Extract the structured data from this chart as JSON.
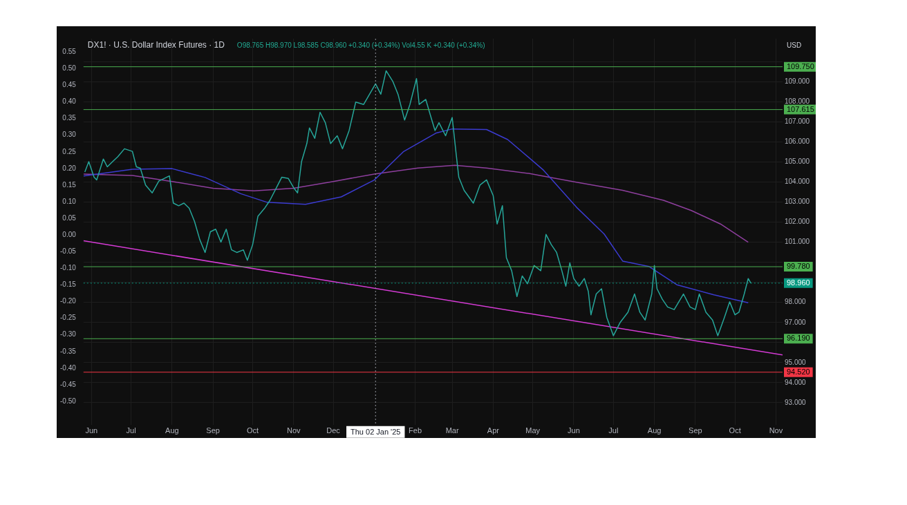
{
  "chart_data": {
    "type": "line",
    "title": "DX1! · U.S. Dollar Index Futures · 1D",
    "annotations": [
      "O98.765 H98.970 L98.585 C98.960 +0.340 (+0.34%) Vol4.55 K +0.340 (+0.34%)",
      "USD"
    ],
    "series": [
      {
        "color": "#26a69a",
        "x": [
          "2024-05-27",
          "2024-05-30",
          "2024-06-03",
          "2024-06-05",
          "2024-06-10",
          "2024-06-13",
          "2024-06-17",
          "2024-06-21",
          "2024-06-26",
          "2024-07-02",
          "2024-07-05",
          "2024-07-08",
          "2024-07-12",
          "2024-07-17",
          "2024-07-22",
          "2024-07-26",
          "2024-07-30",
          "2024-08-02",
          "2024-08-06",
          "2024-08-10",
          "2024-08-14",
          "2024-08-18",
          "2024-08-22",
          "2024-08-26",
          "2024-08-30",
          "2024-09-03",
          "2024-09-07",
          "2024-09-11",
          "2024-09-15",
          "2024-09-19",
          "2024-09-24",
          "2024-09-27",
          "2024-10-01",
          "2024-10-05",
          "2024-10-10",
          "2024-10-14",
          "2024-10-19",
          "2024-10-23",
          "2024-10-28",
          "2024-11-01",
          "2024-11-04",
          "2024-11-07",
          "2024-11-11",
          "2024-11-13",
          "2024-11-17",
          "2024-11-21",
          "2024-11-25",
          "2024-11-29",
          "2024-12-04",
          "2024-12-08",
          "2024-12-13",
          "2024-12-18",
          "2024-12-24",
          "2025-01-02",
          "2025-01-06",
          "2025-01-10",
          "2025-01-15",
          "2025-01-19",
          "2025-01-24",
          "2025-01-28",
          "2025-02-02",
          "2025-02-04",
          "2025-02-09",
          "2025-02-13",
          "2025-02-16",
          "2025-02-19",
          "2025-02-24",
          "2025-03-01",
          "2025-03-04",
          "2025-03-06",
          "2025-03-10",
          "2025-03-17",
          "2025-03-22",
          "2025-03-27",
          "2025-04-01",
          "2025-04-04",
          "2025-04-08",
          "2025-04-11",
          "2025-04-15",
          "2025-04-19",
          "2025-04-23",
          "2025-04-27",
          "2025-05-02",
          "2025-05-07",
          "2025-05-11",
          "2025-05-15",
          "2025-05-19",
          "2025-05-23",
          "2025-05-26",
          "2025-05-29",
          "2025-06-01",
          "2025-06-05",
          "2025-06-09",
          "2025-06-12",
          "2025-06-14",
          "2025-06-18",
          "2025-06-22",
          "2025-06-26",
          "2025-07-01",
          "2025-07-06",
          "2025-07-12",
          "2025-07-17",
          "2025-07-21",
          "2025-07-25",
          "2025-07-30",
          "2025-08-01",
          "2025-08-03",
          "2025-08-07",
          "2025-08-11",
          "2025-08-16",
          "2025-08-23",
          "2025-08-28",
          "2025-09-01",
          "2025-09-04",
          "2025-09-09",
          "2025-09-14",
          "2025-09-18",
          "2025-09-23",
          "2025-09-27",
          "2025-10-01",
          "2025-10-04",
          "2025-10-08",
          "2025-10-11",
          "2025-10-13"
        ],
        "values": [
          104.5,
          105.02,
          104.24,
          104.11,
          105.15,
          104.76,
          105.02,
          105.27,
          105.66,
          105.53,
          104.76,
          104.69,
          103.85,
          103.46,
          104.05,
          104.18,
          104.31,
          102.95,
          102.82,
          102.95,
          102.69,
          102.04,
          101.13,
          100.49,
          101.52,
          101.65,
          101.01,
          101.65,
          100.62,
          100.49,
          100.62,
          100.1,
          100.88,
          102.3,
          102.69,
          103.08,
          103.72,
          104.24,
          104.18,
          103.72,
          103.46,
          105.02,
          105.92,
          106.7,
          106.18,
          107.48,
          106.96,
          105.92,
          106.31,
          105.66,
          106.57,
          107.99,
          107.87,
          108.9,
          108.38,
          109.55,
          109.03,
          108.38,
          107.09,
          107.87,
          109.16,
          107.87,
          108.12,
          107.22,
          106.57,
          106.96,
          106.31,
          107.22,
          105.4,
          104.24,
          103.59,
          102.95,
          103.85,
          104.11,
          103.33,
          101.91,
          102.82,
          100.23,
          99.58,
          98.29,
          99.32,
          98.93,
          99.84,
          99.58,
          101.39,
          100.88,
          100.49,
          99.58,
          98.81,
          99.97,
          99.19,
          98.81,
          99.19,
          98.55,
          97.38,
          98.42,
          98.68,
          97.25,
          96.34,
          96.99,
          97.51,
          98.42,
          97.51,
          97.12,
          98.42,
          99.84,
          98.68,
          98.16,
          97.77,
          97.64,
          98.42,
          97.77,
          97.64,
          98.42,
          97.51,
          97.12,
          96.34,
          97.25,
          98.03,
          97.38,
          97.51,
          98.42,
          99.19,
          98.96
        ]
      },
      {
        "color": "#3b3bd0",
        "x": [
          "2024-05-26",
          "2024-07-02",
          "2024-08-01",
          "2024-08-26",
          "2024-09-22",
          "2024-10-12",
          "2024-11-10",
          "2024-12-07",
          "2025-01-01",
          "2025-01-23",
          "2025-02-17",
          "2025-03-01",
          "2025-03-27",
          "2025-04-12",
          "2025-05-09",
          "2025-06-03",
          "2025-06-24",
          "2025-07-08",
          "2025-07-28",
          "2025-08-18",
          "2025-09-15",
          "2025-10-11"
        ],
        "values": [
          104.3,
          104.64,
          104.67,
          104.23,
          103.42,
          102.99,
          102.89,
          103.26,
          104.1,
          105.51,
          106.45,
          106.65,
          106.62,
          106.12,
          104.6,
          102.75,
          101.41,
          100.06,
          99.79,
          98.88,
          98.38,
          97.98
        ]
      },
      {
        "color": "#8e3f9e",
        "x": [
          "2024-05-26",
          "2024-07-02",
          "2024-08-01",
          "2024-09-01",
          "2024-10-02",
          "2024-11-01",
          "2024-12-01",
          "2025-01-01",
          "2025-02-03",
          "2025-03-03",
          "2025-03-27",
          "2025-04-28",
          "2025-06-03",
          "2025-07-08",
          "2025-08-08",
          "2025-08-29",
          "2025-09-20",
          "2025-10-11"
        ],
        "values": [
          104.4,
          104.33,
          104.03,
          103.69,
          103.56,
          103.69,
          104.03,
          104.4,
          104.7,
          104.84,
          104.7,
          104.43,
          103.99,
          103.59,
          103.09,
          102.58,
          101.91,
          101.0
        ]
      },
      {
        "color": "#d63bd6",
        "x": [
          "2024-05-26",
          "2025-11-06"
        ],
        "values": [
          101.07,
          95.38
        ]
      }
    ],
    "xlim": [
      "2024-05-26",
      "2025-11-06"
    ],
    "xticks": [
      {
        "value": "2024-06-01",
        "label": "Jun"
      },
      {
        "value": "2024-07-01",
        "label": "Jul"
      },
      {
        "value": "2024-08-01",
        "label": "Aug"
      },
      {
        "value": "2024-09-01",
        "label": "Sep"
      },
      {
        "value": "2024-10-01",
        "label": "Oct"
      },
      {
        "value": "2024-11-01",
        "label": "Nov"
      },
      {
        "value": "2024-12-01",
        "label": "Dec"
      },
      {
        "value": "2025-02-01",
        "label": "Feb"
      },
      {
        "value": "2025-03-01",
        "label": "Mar"
      },
      {
        "value": "2025-04-01",
        "label": "Apr"
      },
      {
        "value": "2025-05-01",
        "label": "May"
      },
      {
        "value": "2025-06-01",
        "label": "Jun"
      },
      {
        "value": "2025-07-01",
        "label": "Jul"
      },
      {
        "value": "2025-08-01",
        "label": "Aug"
      },
      {
        "value": "2025-09-01",
        "label": "Sep"
      },
      {
        "value": "2025-10-01",
        "label": "Oct"
      },
      {
        "value": "2025-11-01",
        "label": "Nov"
      }
    ],
    "ylim": [
      91.9,
      111.15
    ],
    "yticks": [
      {
        "value": 93,
        "label": "93.000"
      },
      {
        "value": 94,
        "label": "94.000"
      },
      {
        "value": 95,
        "label": "95.000"
      },
      {
        "value": 96,
        "label": null
      },
      {
        "value": 97,
        "label": "97.000"
      },
      {
        "value": 98,
        "label": "98.000"
      },
      {
        "value": 99,
        "label": null
      },
      {
        "value": 100,
        "label": null
      },
      {
        "value": 101,
        "label": "101.000"
      },
      {
        "value": 102,
        "label": "102.000"
      },
      {
        "value": 103,
        "label": "103.000"
      },
      {
        "value": 104,
        "label": "104.000"
      },
      {
        "value": 105,
        "label": "105.000"
      },
      {
        "value": 106,
        "label": "106.000"
      },
      {
        "value": 107,
        "label": "107.000"
      },
      {
        "value": 108,
        "label": "108.000"
      },
      {
        "value": 109,
        "label": "109.000"
      },
      {
        "value": 110,
        "label": null
      }
    ],
    "y2lim": [
      -0.57,
      0.59
    ],
    "y2ticks": [
      {
        "value": -0.5,
        "label": "-0.50"
      },
      {
        "value": -0.45,
        "label": "-0.45"
      },
      {
        "value": -0.4,
        "label": "-0.40"
      },
      {
        "value": -0.35,
        "label": "-0.35"
      },
      {
        "value": -0.3,
        "label": "-0.30"
      },
      {
        "value": -0.25,
        "label": "-0.25"
      },
      {
        "value": -0.2,
        "label": "-0.20"
      },
      {
        "value": -0.15,
        "label": "-0.15"
      },
      {
        "value": -0.1,
        "label": "-0.10"
      },
      {
        "value": -0.05,
        "label": "-0.05"
      },
      {
        "value": 0,
        "label": "0.00"
      },
      {
        "value": 0.05,
        "label": "0.05"
      },
      {
        "value": 0.1,
        "label": "0.10"
      },
      {
        "value": 0.15,
        "label": "0.15"
      },
      {
        "value": 0.2,
        "label": "0.20"
      },
      {
        "value": 0.25,
        "label": "0.25"
      },
      {
        "value": 0.3,
        "label": "0.30"
      },
      {
        "value": 0.35,
        "label": "0.35"
      },
      {
        "value": 0.4,
        "label": "0.40"
      },
      {
        "value": 0.45,
        "label": "0.45"
      },
      {
        "value": 0.5,
        "label": "0.50"
      },
      {
        "value": 0.55,
        "label": "0.55"
      }
    ],
    "ref_lines": [
      {
        "axis": "y",
        "value": 109.75,
        "label": "109.750",
        "color": "#4caf50"
      },
      {
        "axis": "y",
        "value": 107.615,
        "label": "107.615",
        "color": "#4caf50"
      },
      {
        "axis": "y",
        "value": 99.78,
        "label": "99.780",
        "color": "#4caf50"
      },
      {
        "axis": "y",
        "value": 98.96,
        "label": "98.960",
        "color": "#089981",
        "line_style": "dotted"
      },
      {
        "axis": "y",
        "value": 96.19,
        "label": "96.190",
        "color": "#4caf50"
      },
      {
        "axis": "y",
        "value": 94.52,
        "label": "94.520",
        "color": "#f23645"
      },
      {
        "axis": "x",
        "value": "2025-01-02",
        "label": "Thu 02 Jan '25",
        "color": "#9598a1",
        "line_style": "dotted"
      }
    ],
    "grid": true,
    "legend": false
  }
}
